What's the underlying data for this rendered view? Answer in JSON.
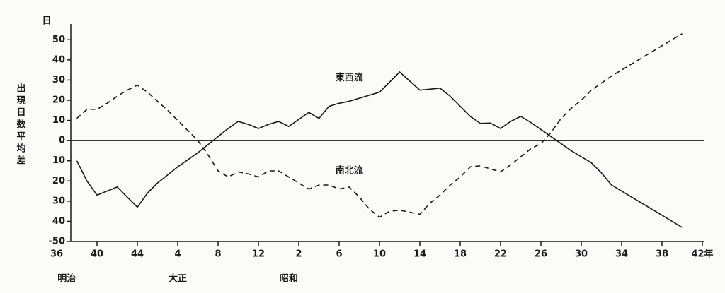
{
  "chart_data": {
    "type": "line",
    "y_label": "出現日数平均差",
    "y_unit": "日",
    "categories": [
      "36",
      null,
      null,
      null,
      "40",
      null,
      null,
      null,
      "44",
      null,
      null,
      null,
      "4",
      null,
      null,
      null,
      "8",
      null,
      null,
      null,
      "12",
      null,
      null,
      null,
      "2",
      null,
      null,
      null,
      "6",
      null,
      null,
      null,
      "10",
      null,
      null,
      null,
      "14",
      null,
      null,
      null,
      "18",
      null,
      null,
      null,
      "22",
      null,
      null,
      null,
      "26",
      null,
      null,
      null,
      "30",
      null,
      null,
      null,
      "34",
      null,
      null,
      null,
      "38",
      null,
      null,
      null,
      "42年"
    ],
    "eras": [
      {
        "label": "明治",
        "at": 1
      },
      {
        "label": "大正",
        "at": 12
      },
      {
        "label": "昭和",
        "at": 23
      }
    ],
    "series": [
      {
        "name": "東西流",
        "color": "#1a1a1a",
        "dash": false,
        "label_at": 29,
        "label_value": 31,
        "values": [
          null,
          null,
          -10,
          -20,
          -27,
          -25,
          -23,
          -28,
          -33,
          -26,
          -21,
          -17,
          -13,
          -9.5,
          -6,
          -2,
          2,
          6,
          9.5,
          8,
          6,
          8,
          9.5,
          7,
          10.5,
          14,
          11,
          17,
          18.5,
          19.5,
          21,
          22.5,
          24,
          29,
          34,
          29.5,
          25,
          25.5,
          26,
          22,
          17,
          12,
          8.5,
          8.7,
          6,
          9.5,
          12,
          9,
          5.5,
          2,
          -1.5,
          -5,
          -8,
          -11,
          -16,
          -22,
          -25,
          -28,
          -31,
          -34,
          -37,
          -40,
          -43,
          null,
          null
        ]
      },
      {
        "name": "南北流",
        "color": "#1a1a1a",
        "dash": true,
        "label_at": 29,
        "label_value": -15,
        "values": [
          null,
          null,
          11,
          15.5,
          15.5,
          18.5,
          22,
          25,
          27.5,
          24,
          19.5,
          15,
          10,
          5,
          0,
          -7,
          -15,
          -18,
          -15.5,
          -16.5,
          -18,
          -15,
          -15,
          -18,
          -21,
          -24,
          -22,
          -22,
          -24,
          -23,
          -28,
          -34,
          -38,
          -35,
          -34.5,
          -35.5,
          -36.5,
          -31,
          -27,
          -22,
          -18,
          -13,
          -12.5,
          -14,
          -15.5,
          -12,
          -8,
          -4,
          -1.5,
          4,
          11,
          16,
          20,
          25,
          28.5,
          32,
          35,
          38,
          41,
          44,
          47,
          50,
          53,
          null,
          null
        ]
      }
    ],
    "ylim": [
      -50,
      55
    ],
    "yticks": [
      {
        "value": -50,
        "label": "-50"
      },
      {
        "value": -40,
        "label": "40"
      },
      {
        "value": -30,
        "label": "30"
      },
      {
        "value": -20,
        "label": "20"
      },
      {
        "value": -10,
        "label": "10"
      },
      0,
      10,
      20,
      30,
      40,
      50
    ]
  }
}
